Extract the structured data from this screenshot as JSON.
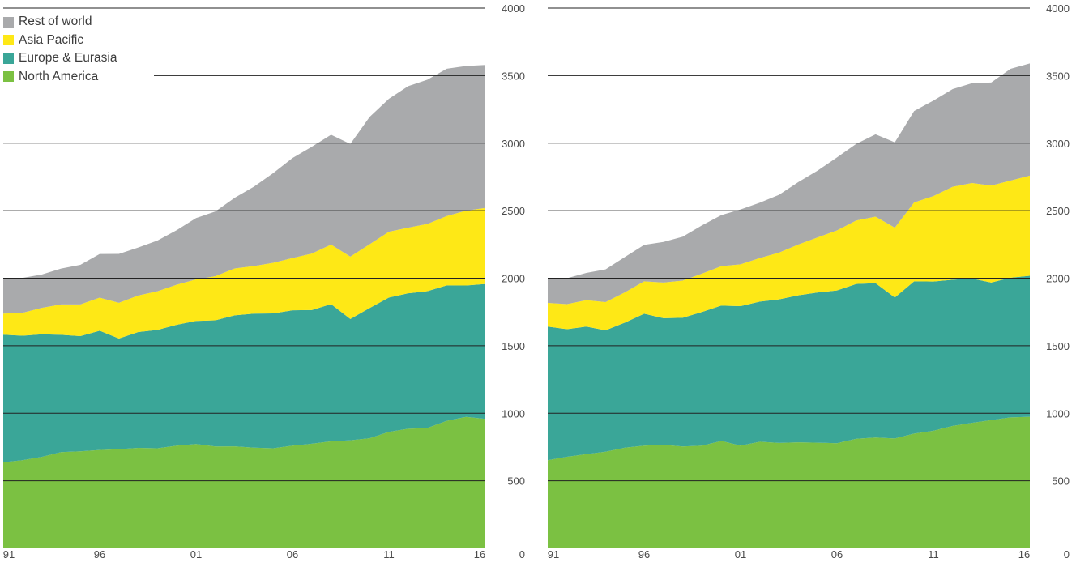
{
  "legend": {
    "items": [
      {
        "label": "Rest of world",
        "color": "#a9aaac"
      },
      {
        "label": "Asia Pacific",
        "color": "#fee816"
      },
      {
        "label": "Europe & Eurasia",
        "color": "#3aa698"
      },
      {
        "label": "North America",
        "color": "#7bc142"
      }
    ]
  },
  "chart_data": [
    {
      "type": "area",
      "stacked": true,
      "x": [
        "91",
        "92",
        "93",
        "94",
        "95",
        "96",
        "97",
        "98",
        "99",
        "00",
        "01",
        "02",
        "03",
        "04",
        "05",
        "06",
        "07",
        "08",
        "09",
        "10",
        "11",
        "12",
        "13",
        "14",
        "15",
        "16"
      ],
      "x_tick_labels": [
        "91",
        "96",
        "01",
        "06",
        "11",
        "16"
      ],
      "y_tick_labels": [
        "0",
        "500",
        "1000",
        "1500",
        "2000",
        "2500",
        "3000",
        "3500",
        "4000"
      ],
      "ylim": [
        0,
        4000
      ],
      "y_axis_side": "right",
      "grid": "horizontal",
      "legend": "top-left",
      "series": [
        {
          "name": "North America",
          "color": "#7bc142",
          "values": [
            637,
            652,
            677,
            712,
            718,
            728,
            734,
            744,
            741,
            760,
            772,
            754,
            755,
            745,
            741,
            760,
            774,
            792,
            800,
            815,
            862,
            885,
            891,
            944,
            973,
            958
          ]
        },
        {
          "name": "Europe & Eurasia",
          "color": "#3aa698",
          "values": [
            945,
            922,
            908,
            869,
            853,
            883,
            819,
            857,
            876,
            895,
            912,
            934,
            970,
            993,
            998,
            1002,
            990,
            1016,
            898,
            964,
            995,
            1003,
            1013,
            1003,
            973,
            999
          ]
        },
        {
          "name": "Asia Pacific",
          "color": "#fee816",
          "values": [
            156,
            170,
            195,
            225,
            235,
            245,
            265,
            271,
            286,
            297,
            307,
            327,
            347,
            352,
            375,
            387,
            418,
            441,
            462,
            472,
            487,
            486,
            498,
            513,
            554,
            563
          ]
        },
        {
          "name": "Rest of world",
          "color": "#a9aaac",
          "values": [
            252,
            258,
            247,
            265,
            293,
            323,
            362,
            355,
            376,
            404,
            454,
            479,
            523,
            588,
            664,
            741,
            791,
            813,
            834,
            943,
            984,
            1048,
            1068,
            1091,
            1071,
            1059
          ]
        }
      ]
    },
    {
      "type": "area",
      "stacked": true,
      "x": [
        "91",
        "92",
        "93",
        "94",
        "95",
        "96",
        "97",
        "98",
        "99",
        "00",
        "01",
        "02",
        "03",
        "04",
        "05",
        "06",
        "07",
        "08",
        "09",
        "10",
        "11",
        "12",
        "13",
        "14",
        "15",
        "16"
      ],
      "x_tick_labels": [
        "91",
        "96",
        "01",
        "06",
        "11",
        "16"
      ],
      "y_tick_labels": [
        "0",
        "500",
        "1000",
        "1500",
        "2000",
        "2500",
        "3000",
        "3500",
        "4000"
      ],
      "ylim": [
        0,
        4000
      ],
      "y_axis_side": "right",
      "grid": "horizontal",
      "series": [
        {
          "name": "North America",
          "color": "#7bc142",
          "values": [
            652,
            678,
            697,
            715,
            745,
            760,
            766,
            754,
            760,
            795,
            760,
            789,
            780,
            785,
            782,
            778,
            811,
            820,
            813,
            849,
            870,
            906,
            929,
            949,
            969,
            974
          ]
        },
        {
          "name": "Europe & Eurasia",
          "color": "#3aa698",
          "values": [
            990,
            944,
            945,
            899,
            926,
            977,
            938,
            953,
            990,
            1002,
            1033,
            1038,
            1063,
            1088,
            1112,
            1131,
            1146,
            1143,
            1044,
            1128,
            1105,
            1083,
            1069,
            1019,
            1035,
            1044
          ]
        },
        {
          "name": "Asia Pacific",
          "color": "#fee816",
          "values": [
            175,
            186,
            195,
            209,
            224,
            240,
            264,
            275,
            284,
            292,
            310,
            322,
            347,
            377,
            408,
            445,
            470,
            493,
            517,
            584,
            633,
            688,
            707,
            718,
            719,
            741
          ]
        },
        {
          "name": "Rest of world",
          "color": "#a9aaac",
          "values": [
            176,
            192,
            202,
            242,
            262,
            270,
            300,
            325,
            357,
            378,
            406,
            410,
            428,
            462,
            495,
            540,
            568,
            609,
            632,
            677,
            707,
            723,
            739,
            763,
            827,
            831
          ]
        }
      ]
    }
  ]
}
